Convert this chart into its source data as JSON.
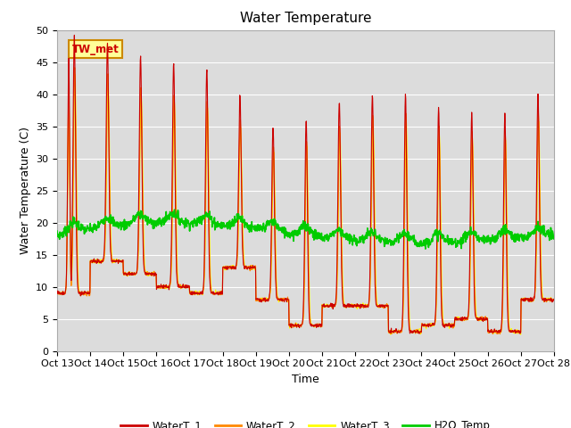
{
  "title": "Water Temperature",
  "ylabel": "Water Temperature (C)",
  "xlabel": "Time",
  "xlim": [
    0,
    15
  ],
  "ylim": [
    0,
    50
  ],
  "yticks": [
    0,
    5,
    10,
    15,
    20,
    25,
    30,
    35,
    40,
    45,
    50
  ],
  "xtick_labels": [
    "Oct 13",
    "Oct 14",
    "Oct 15",
    "Oct 16",
    "Oct 17",
    "Oct 18",
    "Oct 19",
    "Oct 20",
    "Oct 21",
    "Oct 22",
    "Oct 23",
    "Oct 24",
    "Oct 25",
    "Oct 26",
    "Oct 27",
    "Oct 28"
  ],
  "annotation_text": "TW_met",
  "annotation_color": "#cc0000",
  "annotation_bg": "#ffff99",
  "annotation_border": "#cc8800",
  "fig_facecolor": "#ffffff",
  "plot_bg": "#dcdcdc",
  "line_colors": {
    "WaterT_1": "#cc0000",
    "WaterT_2": "#ff8800",
    "WaterT_3": "#ffff00",
    "H2O_Temp": "#00cc00"
  },
  "legend_entries": [
    "WaterT_1",
    "WaterT_2",
    "WaterT_3",
    "H2O_Temp"
  ],
  "title_fontsize": 11,
  "axis_label_fontsize": 9,
  "tick_fontsize": 8
}
